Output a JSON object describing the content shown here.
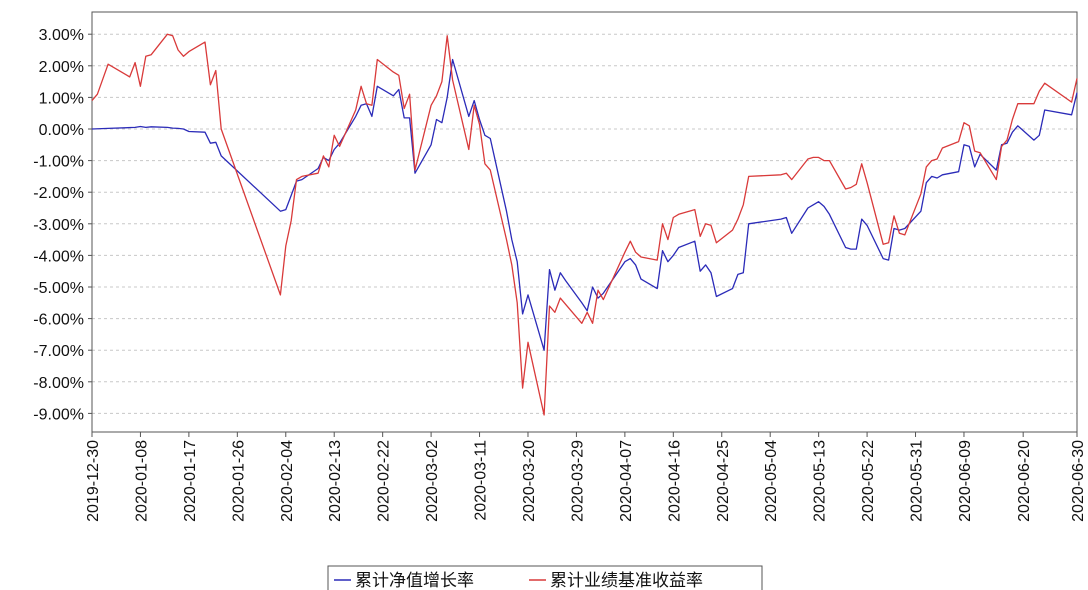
{
  "colors": {
    "fund_line": "#2b2bb8",
    "benchmark_line": "#d93a3a",
    "grid": "#c8c8c8",
    "axis": "#555555",
    "text": "#111111"
  },
  "chart_data": {
    "type": "line",
    "title": "",
    "xlabel": "",
    "ylabel": "",
    "ylim": [
      -10,
      4
    ],
    "grid": true,
    "legend_position": "bottom-center",
    "y_ticks": [
      3,
      2,
      1,
      0,
      -1,
      -2,
      -3,
      -4,
      -5,
      -6,
      -7,
      -8,
      -9
    ],
    "y_tick_labels": [
      "3.00%",
      "2.00%",
      "1.00%",
      "0.00%",
      "-1.00%",
      "-2.00%",
      "-3.00%",
      "-4.00%",
      "-5.00%",
      "-6.00%",
      "-7.00%",
      "-8.00%",
      "-9.00%"
    ],
    "x_range": [
      "2019-12-30",
      "2020-06-30"
    ],
    "x_tick_labels": [
      "2019-12-30",
      "2020-01-08",
      "2020-01-17",
      "2020-01-26",
      "2020-02-04",
      "2020-02-13",
      "2020-02-22",
      "2020-03-02",
      "2020-03-11",
      "2020-03-20",
      "2020-03-29",
      "2020-04-07",
      "2020-04-16",
      "2020-04-25",
      "2020-05-04",
      "2020-05-13",
      "2020-05-22",
      "2020-05-31",
      "2020-06-09",
      "2020-06-20",
      "2020-06-30"
    ],
    "series": [
      {
        "name": "累计净值增长率",
        "color": "#2b2bb8",
        "points": [
          [
            "2019-12-30",
            0.0
          ],
          [
            "2020-01-02",
            0.02
          ],
          [
            "2020-01-07",
            0.05
          ],
          [
            "2020-01-08",
            0.08
          ],
          [
            "2020-01-09",
            0.05
          ],
          [
            "2020-01-10",
            0.07
          ],
          [
            "2020-01-13",
            0.05
          ],
          [
            "2020-01-14",
            0.03
          ],
          [
            "2020-01-15",
            0.02
          ],
          [
            "2020-01-16",
            0.0
          ],
          [
            "2020-01-17",
            -0.08
          ],
          [
            "2020-01-20",
            -0.1
          ],
          [
            "2020-01-21",
            -0.45
          ],
          [
            "2020-01-22",
            -0.42
          ],
          [
            "2020-01-23",
            -0.85
          ],
          [
            "2020-02-03",
            -2.6
          ],
          [
            "2020-02-04",
            -2.55
          ],
          [
            "2020-02-05",
            -2.1
          ],
          [
            "2020-02-06",
            -1.65
          ],
          [
            "2020-02-07",
            -1.6
          ],
          [
            "2020-02-10",
            -1.25
          ],
          [
            "2020-02-11",
            -0.9
          ],
          [
            "2020-02-12",
            -1.0
          ],
          [
            "2020-02-13",
            -0.65
          ],
          [
            "2020-02-14",
            -0.45
          ],
          [
            "2020-02-17",
            0.4
          ],
          [
            "2020-02-18",
            0.75
          ],
          [
            "2020-02-19",
            0.8
          ],
          [
            "2020-02-20",
            0.4
          ],
          [
            "2020-02-21",
            1.35
          ],
          [
            "2020-02-24",
            1.05
          ],
          [
            "2020-02-25",
            1.25
          ],
          [
            "2020-02-26",
            0.35
          ],
          [
            "2020-02-27",
            0.35
          ],
          [
            "2020-02-28",
            -1.4
          ],
          [
            "2020-03-02",
            -0.5
          ],
          [
            "2020-03-03",
            0.3
          ],
          [
            "2020-03-04",
            0.2
          ],
          [
            "2020-03-05",
            1.0
          ],
          [
            "2020-03-06",
            2.2
          ],
          [
            "2020-03-09",
            0.4
          ],
          [
            "2020-03-10",
            0.9
          ],
          [
            "2020-03-11",
            0.3
          ],
          [
            "2020-03-12",
            -0.2
          ],
          [
            "2020-03-13",
            -0.3
          ],
          [
            "2020-03-16",
            -2.6
          ],
          [
            "2020-03-17",
            -3.5
          ],
          [
            "2020-03-18",
            -4.2
          ],
          [
            "2020-03-19",
            -5.85
          ],
          [
            "2020-03-20",
            -5.25
          ],
          [
            "2020-03-23",
            -7.0
          ],
          [
            "2020-03-24",
            -4.45
          ],
          [
            "2020-03-25",
            -5.1
          ],
          [
            "2020-03-26",
            -4.55
          ],
          [
            "2020-03-27",
            -4.8
          ],
          [
            "2020-03-30",
            -5.5
          ],
          [
            "2020-03-31",
            -5.75
          ],
          [
            "2020-04-01",
            -5.0
          ],
          [
            "2020-04-02",
            -5.35
          ],
          [
            "2020-04-03",
            -5.2
          ],
          [
            "2020-04-07",
            -4.2
          ],
          [
            "2020-04-08",
            -4.1
          ],
          [
            "2020-04-09",
            -4.3
          ],
          [
            "2020-04-10",
            -4.75
          ],
          [
            "2020-04-13",
            -5.05
          ],
          [
            "2020-04-14",
            -3.85
          ],
          [
            "2020-04-15",
            -4.2
          ],
          [
            "2020-04-16",
            -4.0
          ],
          [
            "2020-04-17",
            -3.75
          ],
          [
            "2020-04-20",
            -3.55
          ],
          [
            "2020-04-21",
            -4.5
          ],
          [
            "2020-04-22",
            -4.3
          ],
          [
            "2020-04-23",
            -4.55
          ],
          [
            "2020-04-24",
            -5.3
          ],
          [
            "2020-04-27",
            -5.05
          ],
          [
            "2020-04-28",
            -4.6
          ],
          [
            "2020-04-29",
            -4.55
          ],
          [
            "2020-04-30",
            -3.0
          ],
          [
            "2020-05-06",
            -2.85
          ],
          [
            "2020-05-07",
            -2.8
          ],
          [
            "2020-05-08",
            -3.3
          ],
          [
            "2020-05-11",
            -2.5
          ],
          [
            "2020-05-12",
            -2.4
          ],
          [
            "2020-05-13",
            -2.3
          ],
          [
            "2020-05-14",
            -2.45
          ],
          [
            "2020-05-15",
            -2.7
          ],
          [
            "2020-05-18",
            -3.75
          ],
          [
            "2020-05-19",
            -3.8
          ],
          [
            "2020-05-20",
            -3.8
          ],
          [
            "2020-05-21",
            -2.85
          ],
          [
            "2020-05-22",
            -3.05
          ],
          [
            "2020-05-25",
            -4.1
          ],
          [
            "2020-05-26",
            -4.15
          ],
          [
            "2020-05-27",
            -3.15
          ],
          [
            "2020-05-28",
            -3.2
          ],
          [
            "2020-05-29",
            -3.15
          ],
          [
            "2020-06-01",
            -2.6
          ],
          [
            "2020-06-02",
            -1.7
          ],
          [
            "2020-06-03",
            -1.5
          ],
          [
            "2020-06-04",
            -1.55
          ],
          [
            "2020-06-05",
            -1.45
          ],
          [
            "2020-06-08",
            -1.35
          ],
          [
            "2020-06-09",
            -0.5
          ],
          [
            "2020-06-10",
            -0.55
          ],
          [
            "2020-06-11",
            -1.2
          ],
          [
            "2020-06-12",
            -0.8
          ],
          [
            "2020-06-15",
            -1.3
          ],
          [
            "2020-06-16",
            -0.5
          ],
          [
            "2020-06-17",
            -0.45
          ],
          [
            "2020-06-18",
            -0.1
          ],
          [
            "2020-06-19",
            0.1
          ],
          [
            "2020-06-22",
            -0.35
          ],
          [
            "2020-06-23",
            -0.2
          ],
          [
            "2020-06-24",
            0.6
          ],
          [
            "2020-06-29",
            0.45
          ],
          [
            "2020-06-30",
            1.15
          ]
        ]
      },
      {
        "name": "累计业绩基准收益率",
        "color": "#d93a3a",
        "points": [
          [
            "2019-12-30",
            0.9
          ],
          [
            "2019-12-31",
            1.1
          ],
          [
            "2020-01-02",
            2.05
          ],
          [
            "2020-01-06",
            1.65
          ],
          [
            "2020-01-07",
            2.1
          ],
          [
            "2020-01-08",
            1.35
          ],
          [
            "2020-01-09",
            2.3
          ],
          [
            "2020-01-10",
            2.35
          ],
          [
            "2020-01-13",
            3.0
          ],
          [
            "2020-01-14",
            2.95
          ],
          [
            "2020-01-15",
            2.5
          ],
          [
            "2020-01-16",
            2.3
          ],
          [
            "2020-01-17",
            2.45
          ],
          [
            "2020-01-20",
            2.75
          ],
          [
            "2020-01-21",
            1.4
          ],
          [
            "2020-01-22",
            1.85
          ],
          [
            "2020-01-23",
            0.0
          ],
          [
            "2020-02-03",
            -5.25
          ],
          [
            "2020-02-04",
            -3.7
          ],
          [
            "2020-02-05",
            -2.9
          ],
          [
            "2020-02-06",
            -1.6
          ],
          [
            "2020-02-07",
            -1.5
          ],
          [
            "2020-02-10",
            -1.4
          ],
          [
            "2020-02-11",
            -0.85
          ],
          [
            "2020-02-12",
            -1.2
          ],
          [
            "2020-02-13",
            -0.2
          ],
          [
            "2020-02-14",
            -0.55
          ],
          [
            "2020-02-17",
            0.6
          ],
          [
            "2020-02-18",
            1.35
          ],
          [
            "2020-02-19",
            0.8
          ],
          [
            "2020-02-20",
            0.75
          ],
          [
            "2020-02-21",
            2.2
          ],
          [
            "2020-02-24",
            1.8
          ],
          [
            "2020-02-25",
            1.7
          ],
          [
            "2020-02-26",
            0.65
          ],
          [
            "2020-02-27",
            1.1
          ],
          [
            "2020-02-28",
            -1.3
          ],
          [
            "2020-03-02",
            0.75
          ],
          [
            "2020-03-03",
            1.05
          ],
          [
            "2020-03-04",
            1.5
          ],
          [
            "2020-03-05",
            2.95
          ],
          [
            "2020-03-06",
            1.55
          ],
          [
            "2020-03-09",
            -0.65
          ],
          [
            "2020-03-10",
            0.75
          ],
          [
            "2020-03-11",
            0.15
          ],
          [
            "2020-03-12",
            -1.1
          ],
          [
            "2020-03-13",
            -1.3
          ],
          [
            "2020-03-16",
            -3.5
          ],
          [
            "2020-03-17",
            -4.3
          ],
          [
            "2020-03-18",
            -5.5
          ],
          [
            "2020-03-19",
            -8.2
          ],
          [
            "2020-03-20",
            -6.75
          ],
          [
            "2020-03-23",
            -9.05
          ],
          [
            "2020-03-24",
            -5.6
          ],
          [
            "2020-03-25",
            -5.8
          ],
          [
            "2020-03-26",
            -5.35
          ],
          [
            "2020-03-27",
            -5.55
          ],
          [
            "2020-03-30",
            -6.15
          ],
          [
            "2020-03-31",
            -5.8
          ],
          [
            "2020-04-01",
            -6.15
          ],
          [
            "2020-04-02",
            -5.1
          ],
          [
            "2020-04-03",
            -5.4
          ],
          [
            "2020-04-07",
            -3.9
          ],
          [
            "2020-04-08",
            -3.55
          ],
          [
            "2020-04-09",
            -3.9
          ],
          [
            "2020-04-10",
            -4.05
          ],
          [
            "2020-04-13",
            -4.15
          ],
          [
            "2020-04-14",
            -3.0
          ],
          [
            "2020-04-15",
            -3.5
          ],
          [
            "2020-04-16",
            -2.8
          ],
          [
            "2020-04-17",
            -2.7
          ],
          [
            "2020-04-20",
            -2.55
          ],
          [
            "2020-04-21",
            -3.4
          ],
          [
            "2020-04-22",
            -3.0
          ],
          [
            "2020-04-23",
            -3.05
          ],
          [
            "2020-04-24",
            -3.6
          ],
          [
            "2020-04-27",
            -3.2
          ],
          [
            "2020-04-28",
            -2.85
          ],
          [
            "2020-04-29",
            -2.4
          ],
          [
            "2020-04-30",
            -1.5
          ],
          [
            "2020-05-06",
            -1.45
          ],
          [
            "2020-05-07",
            -1.4
          ],
          [
            "2020-05-08",
            -1.6
          ],
          [
            "2020-05-11",
            -0.95
          ],
          [
            "2020-05-12",
            -0.9
          ],
          [
            "2020-05-13",
            -0.9
          ],
          [
            "2020-05-14",
            -1.0
          ],
          [
            "2020-05-15",
            -1.0
          ],
          [
            "2020-05-18",
            -1.9
          ],
          [
            "2020-05-19",
            -1.85
          ],
          [
            "2020-05-20",
            -1.75
          ],
          [
            "2020-05-21",
            -1.1
          ],
          [
            "2020-05-22",
            -1.7
          ],
          [
            "2020-05-25",
            -3.65
          ],
          [
            "2020-05-26",
            -3.6
          ],
          [
            "2020-05-27",
            -2.75
          ],
          [
            "2020-05-28",
            -3.3
          ],
          [
            "2020-05-29",
            -3.35
          ],
          [
            "2020-06-01",
            -2.05
          ],
          [
            "2020-06-02",
            -1.2
          ],
          [
            "2020-06-03",
            -1.0
          ],
          [
            "2020-06-04",
            -0.95
          ],
          [
            "2020-06-05",
            -0.6
          ],
          [
            "2020-06-08",
            -0.4
          ],
          [
            "2020-06-09",
            0.2
          ],
          [
            "2020-06-10",
            0.1
          ],
          [
            "2020-06-11",
            -0.7
          ],
          [
            "2020-06-12",
            -0.75
          ],
          [
            "2020-06-15",
            -1.6
          ],
          [
            "2020-06-16",
            -0.55
          ],
          [
            "2020-06-17",
            -0.35
          ],
          [
            "2020-06-18",
            0.3
          ],
          [
            "2020-06-19",
            0.8
          ],
          [
            "2020-06-22",
            0.8
          ],
          [
            "2020-06-23",
            1.2
          ],
          [
            "2020-06-24",
            1.45
          ],
          [
            "2020-06-29",
            0.85
          ],
          [
            "2020-06-30",
            1.6
          ]
        ]
      }
    ]
  }
}
